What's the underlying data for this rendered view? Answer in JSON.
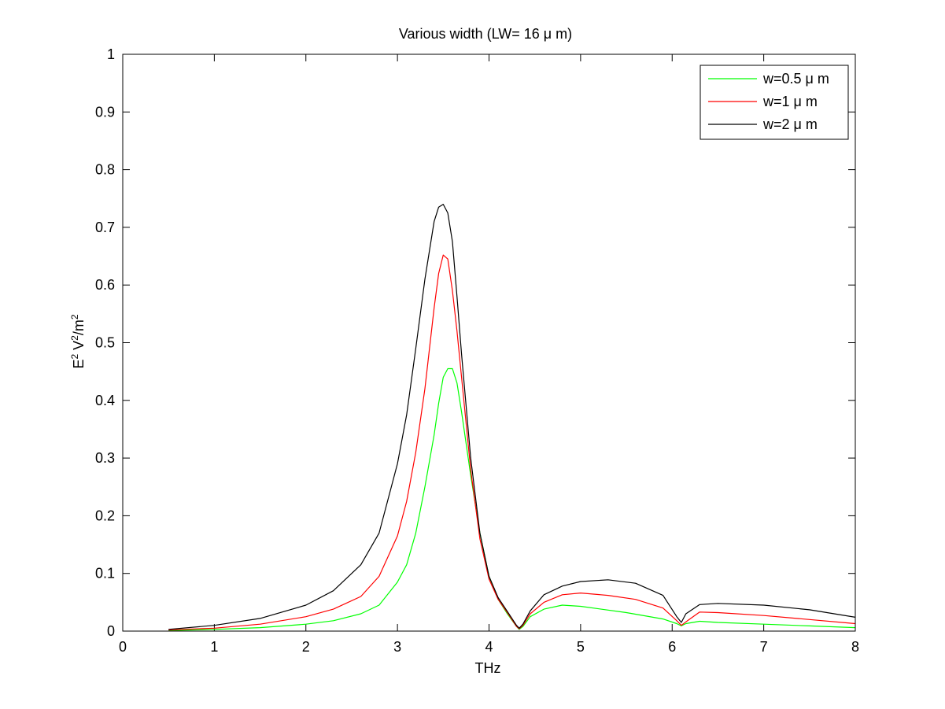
{
  "chart_data": {
    "type": "line",
    "title": "Various width (LW= 16 μ m)",
    "xlabel": "THz",
    "ylabel": {
      "base": "E",
      "sup1": "2",
      "mid": " V",
      "sup2": "2",
      "tail": "/m",
      "sup3": "2"
    },
    "xlim": [
      0,
      8
    ],
    "ylim": [
      0,
      1
    ],
    "xticks": [
      0,
      1,
      2,
      3,
      4,
      5,
      6,
      7,
      8
    ],
    "yticks": [
      0,
      0.1,
      0.2,
      0.3,
      0.4,
      0.5,
      0.6,
      0.7,
      0.8,
      0.9,
      1
    ],
    "xtick_labels": [
      "0",
      "1",
      "2",
      "3",
      "4",
      "5",
      "6",
      "7",
      "8"
    ],
    "ytick_labels": [
      "0",
      "0.1",
      "0.2",
      "0.3",
      "0.4",
      "0.5",
      "0.6",
      "0.7",
      "0.8",
      "0.9",
      "1"
    ],
    "grid": false,
    "legend_position": "top-right",
    "series": [
      {
        "name": "w=0.5 μ m",
        "color": "#00ff00",
        "points": [
          [
            0.5,
            0.001
          ],
          [
            1.0,
            0.003
          ],
          [
            1.5,
            0.006
          ],
          [
            2.0,
            0.012
          ],
          [
            2.3,
            0.018
          ],
          [
            2.6,
            0.03
          ],
          [
            2.8,
            0.045
          ],
          [
            3.0,
            0.085
          ],
          [
            3.1,
            0.115
          ],
          [
            3.2,
            0.17
          ],
          [
            3.3,
            0.25
          ],
          [
            3.4,
            0.34
          ],
          [
            3.45,
            0.395
          ],
          [
            3.5,
            0.44
          ],
          [
            3.55,
            0.455
          ],
          [
            3.6,
            0.455
          ],
          [
            3.65,
            0.43
          ],
          [
            3.7,
            0.38
          ],
          [
            3.8,
            0.27
          ],
          [
            3.9,
            0.17
          ],
          [
            4.0,
            0.095
          ],
          [
            4.1,
            0.055
          ],
          [
            4.2,
            0.03
          ],
          [
            4.3,
            0.008
          ],
          [
            4.33,
            0.003
          ],
          [
            4.37,
            0.008
          ],
          [
            4.45,
            0.025
          ],
          [
            4.6,
            0.038
          ],
          [
            4.8,
            0.045
          ],
          [
            5.0,
            0.043
          ],
          [
            5.5,
            0.032
          ],
          [
            5.9,
            0.021
          ],
          [
            6.05,
            0.013
          ],
          [
            6.1,
            0.009
          ],
          [
            6.15,
            0.013
          ],
          [
            6.3,
            0.017
          ],
          [
            6.5,
            0.015
          ],
          [
            7.0,
            0.012
          ],
          [
            7.5,
            0.009
          ],
          [
            8.0,
            0.006
          ]
        ]
      },
      {
        "name": "w=1 μ m",
        "color": "#ff0000",
        "points": [
          [
            0.5,
            0.002
          ],
          [
            1.0,
            0.005
          ],
          [
            1.5,
            0.012
          ],
          [
            2.0,
            0.025
          ],
          [
            2.3,
            0.038
          ],
          [
            2.6,
            0.06
          ],
          [
            2.8,
            0.095
          ],
          [
            3.0,
            0.165
          ],
          [
            3.1,
            0.225
          ],
          [
            3.2,
            0.31
          ],
          [
            3.3,
            0.42
          ],
          [
            3.4,
            0.56
          ],
          [
            3.45,
            0.62
          ],
          [
            3.5,
            0.652
          ],
          [
            3.55,
            0.645
          ],
          [
            3.6,
            0.59
          ],
          [
            3.65,
            0.52
          ],
          [
            3.7,
            0.44
          ],
          [
            3.8,
            0.28
          ],
          [
            3.9,
            0.16
          ],
          [
            4.0,
            0.09
          ],
          [
            4.1,
            0.055
          ],
          [
            4.2,
            0.032
          ],
          [
            4.3,
            0.008
          ],
          [
            4.33,
            0.004
          ],
          [
            4.37,
            0.01
          ],
          [
            4.45,
            0.03
          ],
          [
            4.6,
            0.05
          ],
          [
            4.8,
            0.063
          ],
          [
            5.0,
            0.066
          ],
          [
            5.3,
            0.062
          ],
          [
            5.6,
            0.055
          ],
          [
            5.9,
            0.04
          ],
          [
            6.05,
            0.018
          ],
          [
            6.1,
            0.01
          ],
          [
            6.15,
            0.016
          ],
          [
            6.3,
            0.033
          ],
          [
            6.5,
            0.032
          ],
          [
            7.0,
            0.027
          ],
          [
            7.5,
            0.02
          ],
          [
            8.0,
            0.013
          ]
        ]
      },
      {
        "name": "w=2 μ m",
        "color": "#000000",
        "points": [
          [
            0.5,
            0.003
          ],
          [
            1.0,
            0.01
          ],
          [
            1.5,
            0.022
          ],
          [
            2.0,
            0.045
          ],
          [
            2.3,
            0.07
          ],
          [
            2.6,
            0.115
          ],
          [
            2.8,
            0.17
          ],
          [
            3.0,
            0.29
          ],
          [
            3.1,
            0.375
          ],
          [
            3.2,
            0.49
          ],
          [
            3.3,
            0.61
          ],
          [
            3.4,
            0.71
          ],
          [
            3.45,
            0.735
          ],
          [
            3.5,
            0.74
          ],
          [
            3.55,
            0.725
          ],
          [
            3.6,
            0.675
          ],
          [
            3.65,
            0.58
          ],
          [
            3.7,
            0.48
          ],
          [
            3.8,
            0.3
          ],
          [
            3.9,
            0.17
          ],
          [
            4.0,
            0.095
          ],
          [
            4.1,
            0.058
          ],
          [
            4.2,
            0.034
          ],
          [
            4.3,
            0.01
          ],
          [
            4.33,
            0.005
          ],
          [
            4.37,
            0.012
          ],
          [
            4.45,
            0.035
          ],
          [
            4.6,
            0.063
          ],
          [
            4.8,
            0.078
          ],
          [
            5.0,
            0.086
          ],
          [
            5.3,
            0.089
          ],
          [
            5.6,
            0.083
          ],
          [
            5.9,
            0.062
          ],
          [
            6.05,
            0.025
          ],
          [
            6.1,
            0.015
          ],
          [
            6.15,
            0.03
          ],
          [
            6.3,
            0.046
          ],
          [
            6.5,
            0.048
          ],
          [
            7.0,
            0.045
          ],
          [
            7.5,
            0.037
          ],
          [
            8.0,
            0.024
          ]
        ]
      }
    ]
  }
}
